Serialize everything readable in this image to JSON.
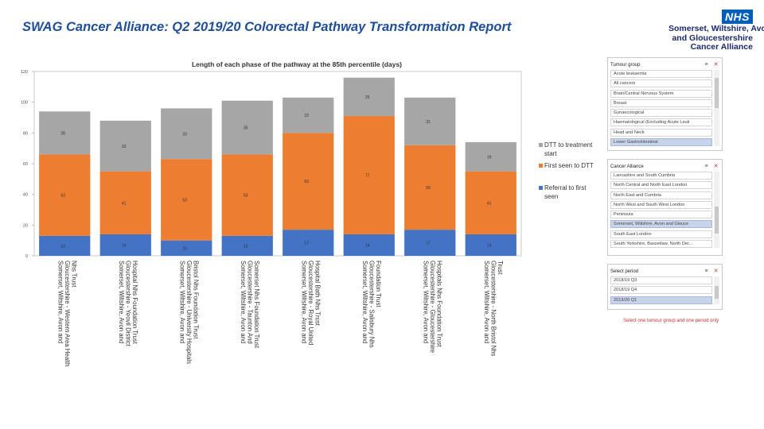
{
  "page": {
    "title": "SWAG Cancer Alliance: Q2 2019/20 Colorectal Pathway Transformation Report"
  },
  "logo": {
    "badge": "NHS",
    "lines": [
      "Somerset, Wiltshire, Avon",
      "and Gloucestershire",
      "Cancer Alliance"
    ]
  },
  "colors": {
    "dtt": "#a6a6a6",
    "first_seen": "#ed7d31",
    "referral": "#4472c4",
    "title_blue": "#1f4e9a"
  },
  "chart_data": {
    "type": "bar",
    "stacked": true,
    "title": "Length of each phase of the pathway at the 85th percentile (days)",
    "categories": [
      [
        "Somerset, Wiltshire, Avon and",
        "Gloucestershire - Western Area Health",
        "Nhs Trust"
      ],
      [
        "Somerset, Wiltshire, Avon and",
        "Gloucestershire - Yeovil District",
        "Hospital Nhs Foundation Trust"
      ],
      [
        "Somerset, Wiltshire, Avon and",
        "Gloucestershire - University Hospitals",
        "Bristol Nhs Foundation Trust"
      ],
      [
        "Somerset, Wiltshire, Avon and",
        "Gloucestershire - Taunton And",
        "Somerset Nhs Foundation Trust"
      ],
      [
        "Somerset, Wiltshire, Avon and",
        "Gloucestershire - Royal United",
        "Hospital Bath Nhs Trust"
      ],
      [
        "Somerset, Wiltshire, Avon and",
        "Gloucestershire - Salisbury Nhs",
        "Foundation Trust"
      ],
      [
        "Somerset, Wiltshire, Avon and",
        "Gloucestershire - Gloucestershire",
        "Hospitals Nhs Foundation Trust"
      ],
      [
        "Somerset, Wiltshire, Avon and",
        "Gloucestershire - North Bristol Nhs",
        "Trust"
      ]
    ],
    "series": [
      {
        "name": "Referral to first seen",
        "key": "referral",
        "values": [
          13,
          14,
          10,
          13,
          17,
          14,
          17,
          14
        ]
      },
      {
        "name": "First seen to DTT",
        "key": "first_seen",
        "values": [
          53,
          41,
          53,
          53,
          63,
          77,
          55,
          41
        ]
      },
      {
        "name": "DTT to treatment start",
        "key": "dtt",
        "values": [
          28,
          33,
          33,
          35,
          23,
          25,
          31,
          19
        ]
      }
    ],
    "yticks": [
      "0",
      "20",
      "40",
      "60",
      "80",
      "100",
      "120"
    ],
    "ylim": [
      0,
      120
    ],
    "legend": "right",
    "legend_order": [
      "DTT to treatment start",
      "First seen to DTT",
      "Referral to first seen"
    ]
  },
  "slicers": [
    {
      "title": "Tumour group",
      "items": [
        {
          "label": "Acute leukaemia",
          "selected": false
        },
        {
          "label": "All cancers",
          "selected": false
        },
        {
          "label": "Brain/Central Nervous System",
          "selected": false
        },
        {
          "label": "Breast",
          "selected": false
        },
        {
          "label": "Gynaecological",
          "selected": false
        },
        {
          "label": "Haematological (Excluding Acute Leuk",
          "selected": false
        },
        {
          "label": "Head and Neck",
          "selected": false
        },
        {
          "label": "Lower Gastrointestinal",
          "selected": true
        }
      ]
    },
    {
      "title": "Cancer Alliance",
      "items": [
        {
          "label": "Lancashire and South Cumbria",
          "selected": false
        },
        {
          "label": "North Central and North East London",
          "selected": false
        },
        {
          "label": "North East and Cumbria",
          "selected": false
        },
        {
          "label": "North West and South West London",
          "selected": false
        },
        {
          "label": "Peninsula",
          "selected": false
        },
        {
          "label": "Somerset, Wiltshire, Avon and Glouce",
          "selected": true
        },
        {
          "label": "South East London",
          "selected": false
        },
        {
          "label": "South Yorkshire, Bassetlaw, North Der...",
          "selected": false
        }
      ]
    },
    {
      "title": "Select period",
      "items": [
        {
          "label": "2018/19 Q3",
          "selected": false
        },
        {
          "label": "2018/19 Q4",
          "selected": false
        },
        {
          "label": "2019/20 Q1",
          "selected": true
        }
      ]
    }
  ],
  "note": "Select one tumour group and one period only"
}
